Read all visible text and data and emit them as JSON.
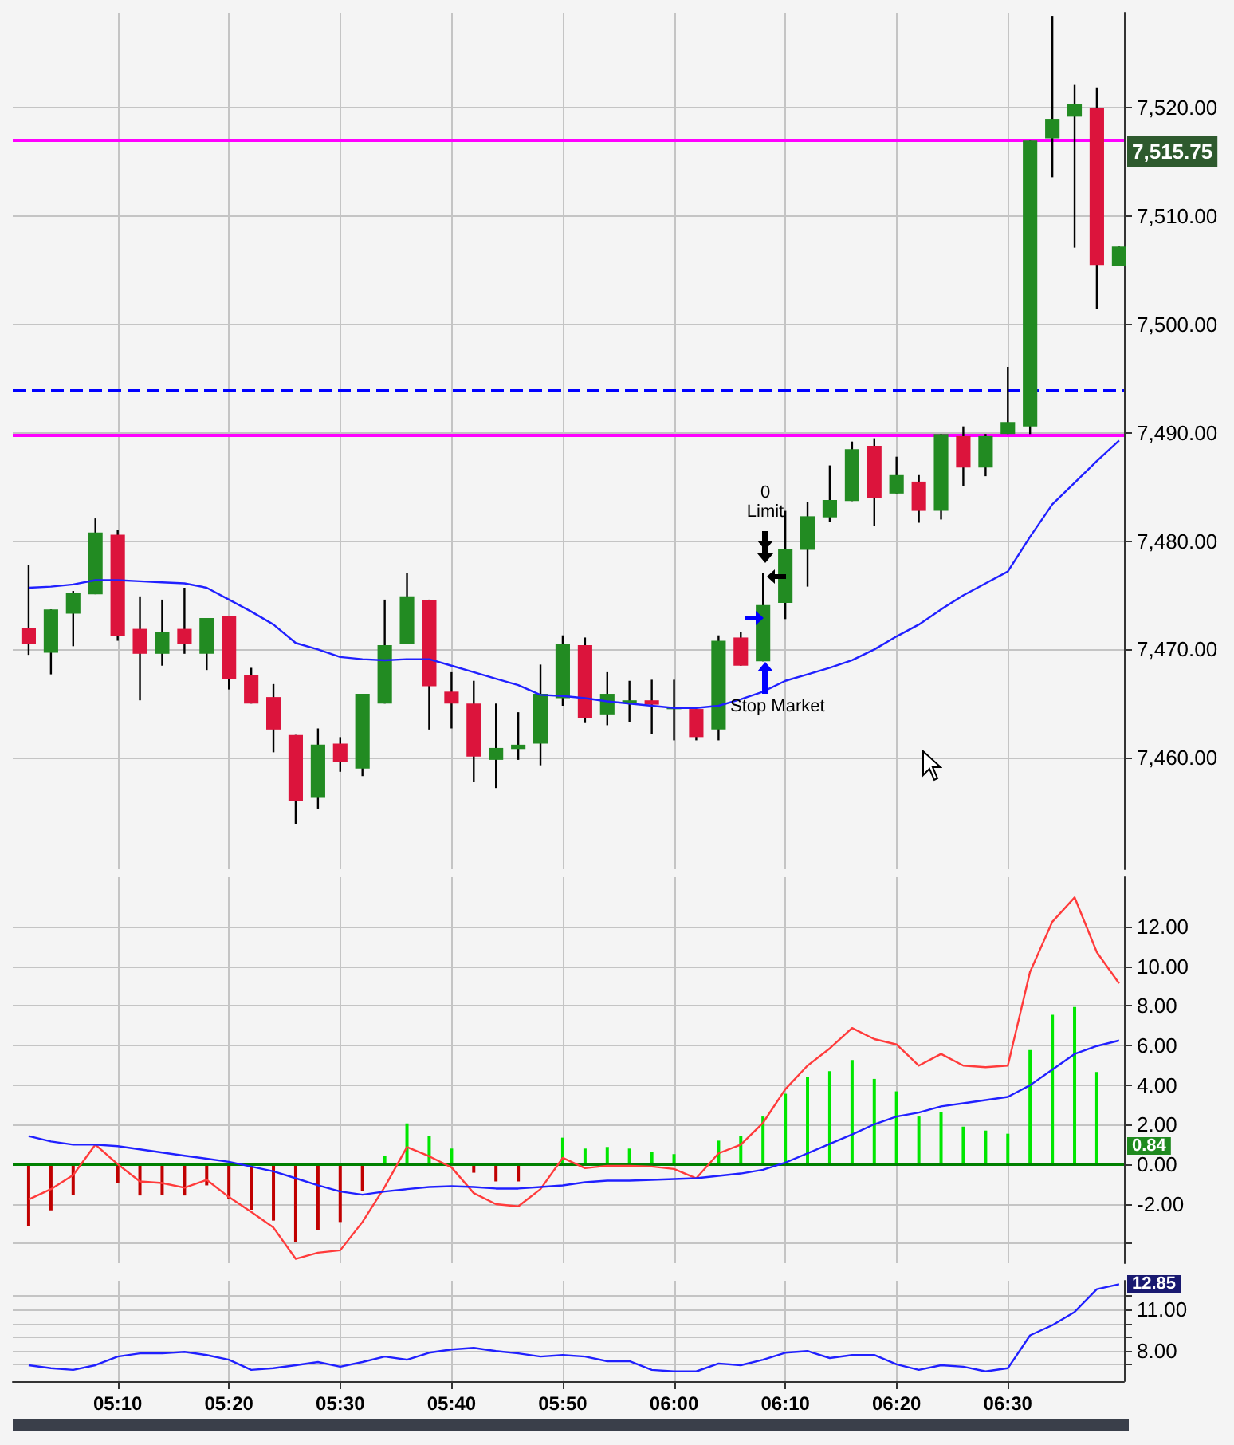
{
  "chart_data": [
    {
      "type": "candlestick",
      "x": [
        5.0333,
        5.0667,
        5.1,
        5.1333,
        5.1667,
        5.2,
        5.2333,
        5.2667,
        5.3,
        5.3333,
        5.3667,
        5.4,
        5.4333,
        5.4667,
        5.5,
        5.5333,
        5.5667,
        5.6,
        5.6333,
        5.6667,
        5.7,
        5.7333,
        5.7667,
        5.8,
        5.8333,
        5.8667,
        5.9,
        5.9333,
        5.9667,
        6,
        6.0333,
        6.0667,
        6.1,
        6.1333,
        6.1667,
        6.2,
        6.2333,
        6.2667,
        6.3,
        6.3333,
        6.3667,
        6.4,
        6.4333,
        6.4667,
        6.5,
        6.5333,
        6.5667,
        6.6,
        6.6333,
        6.6667
      ],
      "ohlc": [
        [
          7472.0,
          7477.8,
          7469.5,
          7470.5
        ],
        [
          7469.7,
          7473.7,
          7467.7,
          7473.7
        ],
        [
          7473.3,
          7475.4,
          7470.3,
          7475.2
        ],
        [
          7475.1,
          7482.1,
          7475.1,
          7480.8
        ],
        [
          7480.6,
          7481.0,
          7470.8,
          7471.2
        ],
        [
          7471.9,
          7474.9,
          7465.3,
          7469.6
        ],
        [
          7469.6,
          7474.6,
          7468.5,
          7471.6
        ],
        [
          7471.9,
          7475.7,
          7469.6,
          7470.5
        ],
        [
          7469.6,
          7472.9,
          7468.1,
          7472.9
        ],
        [
          7473.1,
          7473.1,
          7466.3,
          7467.3
        ],
        [
          7467.6,
          7468.3,
          7465.0,
          7465.0
        ],
        [
          7465.6,
          7466.8,
          7460.5,
          7462.6
        ],
        [
          7462.1,
          7462.1,
          7453.9,
          7456.0
        ],
        [
          7456.3,
          7462.7,
          7455.3,
          7461.2
        ],
        [
          7461.3,
          7461.9,
          7458.7,
          7459.6
        ],
        [
          7459.0,
          7465.9,
          7458.3,
          7465.9
        ],
        [
          7465.0,
          7474.6,
          7465.0,
          7470.4
        ],
        [
          7470.5,
          7477.1,
          7470.5,
          7474.9
        ],
        [
          7474.6,
          7474.6,
          7462.6,
          7466.6
        ],
        [
          7466.1,
          7467.9,
          7462.7,
          7465.0
        ],
        [
          7465.0,
          7467.1,
          7457.8,
          7460.1
        ],
        [
          7459.8,
          7465.0,
          7457.2,
          7460.9
        ],
        [
          7460.8,
          7464.2,
          7459.8,
          7461.2
        ],
        [
          7461.3,
          7468.6,
          7459.3,
          7465.9
        ],
        [
          7465.5,
          7471.3,
          7464.8,
          7470.5
        ],
        [
          7470.4,
          7471.1,
          7463.2,
          7463.7
        ],
        [
          7464.0,
          7467.9,
          7463.0,
          7465.9
        ],
        [
          7465.1,
          7467.1,
          7463.3,
          7465.3
        ],
        [
          7465.3,
          7467.2,
          7462.2,
          7464.9
        ],
        [
          7464.7,
          7467.2,
          7461.6,
          7464.7
        ],
        [
          7464.5,
          7464.5,
          7461.6,
          7461.9
        ],
        [
          7462.6,
          7471.3,
          7461.6,
          7470.8
        ],
        [
          7471.1,
          7471.6,
          7468.5,
          7468.5
        ],
        [
          7468.9,
          7477.1,
          7468.9,
          7474.1
        ],
        [
          7474.3,
          7482.8,
          7472.8,
          7479.3
        ],
        [
          7479.2,
          7483.6,
          7475.8,
          7482.3
        ],
        [
          7482.2,
          7487.0,
          7481.8,
          7483.8
        ],
        [
          7483.7,
          7489.2,
          7483.7,
          7488.5
        ],
        [
          7488.8,
          7489.5,
          7481.4,
          7484.0
        ],
        [
          7484.4,
          7487.8,
          7484.4,
          7486.1
        ],
        [
          7485.5,
          7486.1,
          7481.7,
          7482.8
        ],
        [
          7482.8,
          7489.9,
          7482.0,
          7489.9
        ],
        [
          7489.7,
          7490.6,
          7485.1,
          7486.8
        ],
        [
          7486.8,
          7489.9,
          7486.0,
          7489.7
        ],
        [
          7489.9,
          7496.1,
          7489.9,
          7491.0
        ],
        [
          7490.6,
          7517.0,
          7489.9,
          7517.0
        ],
        [
          7517.2,
          7528.5,
          7513.6,
          7519.0
        ],
        [
          7519.2,
          7522.2,
          7507.1,
          7520.4
        ],
        [
          7520.0,
          7521.9,
          7501.4,
          7505.5
        ],
        [
          7505.4,
          7507.2,
          7505.4,
          7507.2
        ]
      ],
      "colors": [
        "#dc143c",
        "#228b22",
        "#228b22",
        "#228b22",
        "#dc143c",
        "#dc143c",
        "#228b22",
        "#dc143c",
        "#228b22",
        "#dc143c",
        "#dc143c",
        "#dc143c",
        "#dc143c",
        "#228b22",
        "#dc143c",
        "#228b22",
        "#228b22",
        "#228b22",
        "#dc143c",
        "#dc143c",
        "#dc143c",
        "#228b22",
        "#228b22",
        "#228b22",
        "#228b22",
        "#dc143c",
        "#228b22",
        "#228b22",
        "#dc143c",
        "#228b22",
        "#dc143c",
        "#228b22",
        "#dc143c",
        "#228b22",
        "#228b22",
        "#228b22",
        "#228b22",
        "#228b22",
        "#dc143c",
        "#228b22",
        "#dc143c",
        "#228b22",
        "#dc143c",
        "#228b22",
        "#228b22",
        "#228b22",
        "#228b22",
        "#228b22",
        "#dc143c",
        "#228b22"
      ],
      "series": [
        {
          "type": "line",
          "color": "#2020ff",
          "values": [
            7475.7,
            7475.8,
            7476.0,
            7476.4,
            7476.4,
            7476.3,
            7476.2,
            7476.1,
            7475.7,
            7474.6,
            7473.5,
            7472.3,
            7470.6,
            7470.0,
            7469.3,
            7469.1,
            7469.0,
            7469.1,
            7469.1,
            7468.5,
            7467.9,
            7467.3,
            7466.7,
            7465.8,
            7465.7,
            7465.5,
            7465.2,
            7465.0,
            7464.8,
            7464.6,
            7464.6,
            7464.8,
            7465.4,
            7466.1,
            7467.1,
            7467.7,
            7468.3,
            7469.0,
            7470.0,
            7471.2,
            7472.3,
            7473.7,
            7475.0,
            7476.1,
            7477.2,
            7480.4,
            7483.4,
            7485.4,
            7487.4,
            7489.3
          ]
        }
      ],
      "ref_lines": [
        {
          "axis": "y",
          "value": 7517.0,
          "color": "#ff00ff",
          "line_style": "solid"
        },
        {
          "axis": "y",
          "value": 7494.0,
          "color": "#0000ff",
          "line_style": "dashed"
        },
        {
          "axis": "y",
          "value": 7489.8,
          "color": "#ff00ff",
          "line_style": "solid"
        }
      ],
      "annotations": [
        "0",
        "Limit",
        "Stop Market",
        "7,515.75"
      ],
      "xlim": [
        5.0095,
        6.674
      ],
      "ylim": [
        7449.7,
        7528.8
      ],
      "xticks": [
        {
          "value": 5.1667,
          "label": null
        },
        {
          "value": 5.3333,
          "label": null
        },
        {
          "value": 5.5,
          "label": null
        },
        {
          "value": 5.6667,
          "label": null
        },
        {
          "value": 5.8333,
          "label": null
        },
        {
          "value": 6,
          "label": null
        },
        {
          "value": 6.1667,
          "label": null
        },
        {
          "value": 6.3333,
          "label": null
        },
        {
          "value": 6.5,
          "label": null
        }
      ],
      "yticks": [
        {
          "value": 7460,
          "label": "7,460.00"
        },
        {
          "value": 7470,
          "label": "7,470.00"
        },
        {
          "value": 7480,
          "label": "7,480.00"
        },
        {
          "value": 7490,
          "label": "7,490.00"
        },
        {
          "value": 7500,
          "label": "7,500.00"
        },
        {
          "value": 7510,
          "label": "7,510.00"
        },
        {
          "value": 7520,
          "label": "7,520.00"
        }
      ],
      "grid": true,
      "marker": "none",
      "tick_labels": "y"
    },
    {
      "type": "bar",
      "x": [
        5.0333,
        5.0667,
        5.1,
        5.1333,
        5.1667,
        5.2,
        5.2333,
        5.2667,
        5.3,
        5.3333,
        5.3667,
        5.4,
        5.4333,
        5.4667,
        5.5,
        5.5333,
        5.5667,
        5.6,
        5.6333,
        5.6667,
        5.7,
        5.7333,
        5.7667,
        5.8,
        5.8333,
        5.8667,
        5.9,
        5.9333,
        5.9667,
        6,
        6.0333,
        6.0667,
        6.1,
        6.1333,
        6.1667,
        6.2,
        6.2333,
        6.2667,
        6.3,
        6.3333,
        6.3667,
        6.4,
        6.4333,
        6.4667,
        6.5,
        6.5333,
        6.5667,
        6.6,
        6.6333,
        6.6667
      ],
      "series": [
        {
          "values": [
            -3.12,
            -2.33,
            -1.54,
            null,
            -0.95,
            -1.58,
            -1.54,
            -1.58,
            -1.07,
            -1.74,
            -2.3,
            -2.85,
            -3.95,
            -3.32,
            -2.92,
            -1.34,
            0.43,
            2.06,
            1.42,
            0.79,
            -0.43,
            -0.87,
            -0.87,
            null,
            1.34,
            0.79,
            0.87,
            0.79,
            0.63,
            0.51,
            0,
            1.19,
            1.42,
            2.41,
            3.56,
            4.39,
            4.7,
            5.26,
            4.31,
            3.68,
            2.41,
            2.65,
            1.9,
            1.7,
            1.54,
            5.77,
            7.55,
            7.94,
            4.66,
            null
          ],
          "colors": [
            "#c00000",
            "#c00000",
            "#c00000",
            "#c00000",
            "#c00000",
            "#c00000",
            "#c00000",
            "#c00000",
            "#c00000",
            "#c00000",
            "#c00000",
            "#c00000",
            "#c00000",
            "#c00000",
            "#c00000",
            "#c00000",
            "#00e600",
            "#00e600",
            "#00e600",
            "#00e600",
            "#c00000",
            "#c00000",
            "#c00000",
            "#c00000",
            "#00e600",
            "#00e600",
            "#00e600",
            "#00e600",
            "#00e600",
            "#00e600",
            "#00e600",
            "#00e600",
            "#00e600",
            "#00e600",
            "#00e600",
            "#00e600",
            "#00e600",
            "#00e600",
            "#00e600",
            "#00e600",
            "#00e600",
            "#00e600",
            "#00e600",
            "#00e600",
            "#00e600",
            "#00e600",
            "#00e600",
            "#00e600",
            "#00e600",
            "#00e600"
          ]
        },
        {
          "type": "line",
          "color": "#ff3b3b",
          "values": [
            -1.78,
            -1.26,
            -0.55,
            0.99,
            0.0,
            -0.87,
            -0.95,
            -1.19,
            -0.79,
            -1.66,
            -2.41,
            -3.2,
            -4.78,
            -4.47,
            -4.35,
            -2.92,
            -1.15,
            0.87,
            0.4,
            -0.16,
            -1.46,
            -2.02,
            -2.13,
            -1.26,
            0.32,
            -0.2,
            -0.08,
            -0.08,
            -0.12,
            -0.24,
            -0.71,
            0.55,
            0.99,
            2.09,
            3.79,
            4.98,
            5.85,
            6.88,
            6.32,
            6.05,
            4.98,
            5.57,
            4.98,
            4.9,
            4.98,
            9.72,
            12.25,
            13.48,
            10.71,
            9.13
          ]
        },
        {
          "type": "line",
          "color": "#2020ff",
          "values": [
            1.42,
            1.15,
            0.99,
            0.99,
            0.91,
            0.75,
            0.59,
            0.43,
            0.28,
            0.12,
            -0.12,
            -0.36,
            -0.71,
            -1.07,
            -1.38,
            -1.54,
            -1.38,
            -1.26,
            -1.15,
            -1.11,
            -1.15,
            -1.23,
            -1.23,
            -1.15,
            -1.07,
            -0.91,
            -0.83,
            -0.83,
            -0.79,
            -0.75,
            -0.71,
            -0.59,
            -0.47,
            -0.28,
            0.08,
            0.55,
            1.03,
            1.5,
            2.02,
            2.41,
            2.61,
            2.92,
            3.08,
            3.24,
            3.4,
            3.99,
            4.78,
            5.57,
            5.97,
            6.25
          ]
        }
      ],
      "ref_lines": [
        {
          "axis": "y",
          "value": 0,
          "color": "#008000",
          "line_style": "solid"
        }
      ],
      "annotations": [
        "0.84"
      ],
      "xlim": [
        5.0095,
        6.674
      ],
      "ylim": [
        -5,
        14.5
      ],
      "xticks": [
        {
          "value": 5.1667,
          "label": null
        },
        {
          "value": 5.3333,
          "label": null
        },
        {
          "value": 5.5,
          "label": null
        },
        {
          "value": 5.6667,
          "label": null
        },
        {
          "value": 5.8333,
          "label": null
        },
        {
          "value": 6,
          "label": null
        },
        {
          "value": 6.1667,
          "label": null
        },
        {
          "value": 6.3333,
          "label": null
        },
        {
          "value": 6.5,
          "label": null
        }
      ],
      "yticks": [
        {
          "value": -4,
          "label": null
        },
        {
          "value": -2,
          "label": "-2.00"
        },
        {
          "value": 0,
          "label": "0.00"
        },
        {
          "value": 2,
          "label": "2.00"
        },
        {
          "value": 4,
          "label": "4.00"
        },
        {
          "value": 6,
          "label": "6.00"
        },
        {
          "value": 8,
          "label": "8.00"
        },
        {
          "value": 10,
          "label": "10.00"
        },
        {
          "value": 12,
          "label": "12.00"
        }
      ],
      "grid": true,
      "marker": "none",
      "tick_labels": "y"
    },
    {
      "type": "line",
      "x": [
        5.0333,
        5.0667,
        5.1,
        5.1333,
        5.1667,
        5.2,
        5.2333,
        5.2667,
        5.3,
        5.3333,
        5.3667,
        5.4,
        5.4333,
        5.4667,
        5.5,
        5.5333,
        5.5667,
        5.6,
        5.6333,
        5.6667,
        5.7,
        5.7333,
        5.7667,
        5.8,
        5.8333,
        5.8667,
        5.9,
        5.9333,
        5.9667,
        6,
        6.0333,
        6.0667,
        6.1,
        6.1333,
        6.1667,
        6.2,
        6.2333,
        6.2667,
        6.3,
        6.3333,
        6.3667,
        6.4,
        6.4333,
        6.4667,
        6.5,
        6.5333,
        6.5667,
        6.6,
        6.6333,
        6.6667
      ],
      "series": [
        {
          "color": "#2020ff",
          "values": [
            6.96,
            6.74,
            6.62,
            6.96,
            7.59,
            7.82,
            7.82,
            7.93,
            7.7,
            7.36,
            6.62,
            6.74,
            6.96,
            7.19,
            6.85,
            7.19,
            7.59,
            7.36,
            7.87,
            8.1,
            8.22,
            7.99,
            7.82,
            7.59,
            7.7,
            7.59,
            7.25,
            7.25,
            6.62,
            6.51,
            6.51,
            7.08,
            6.96,
            7.36,
            7.87,
            7.99,
            7.48,
            7.7,
            7.7,
            7.02,
            6.62,
            6.96,
            6.85,
            6.51,
            6.74,
            9.13,
            9.87,
            10.83,
            12.48,
            12.85
          ]
        }
      ],
      "annotations": [
        "12.85"
      ],
      "xlim": [
        5.0095,
        6.674
      ],
      "ylim": [
        5.8,
        13.1
      ],
      "xticks": [
        {
          "value": 5.1667,
          "label": "05:10"
        },
        {
          "value": 5.3333,
          "label": "05:20"
        },
        {
          "value": 5.5,
          "label": "05:30"
        },
        {
          "value": 5.6667,
          "label": "05:40"
        },
        {
          "value": 5.8333,
          "label": "05:50"
        },
        {
          "value": 6,
          "label": "06:00"
        },
        {
          "value": 6.1667,
          "label": "06:10"
        },
        {
          "value": 6.3333,
          "label": "06:20"
        },
        {
          "value": 6.5,
          "label": "06:30"
        }
      ],
      "yticks": [
        {
          "value": 7,
          "label": null
        },
        {
          "value": 8,
          "label": "8.00"
        },
        {
          "value": 9,
          "label": null
        },
        {
          "value": 10,
          "label": null
        },
        {
          "value": 11,
          "label": "11.00"
        },
        {
          "value": 12,
          "label": null
        }
      ],
      "grid": true,
      "marker": "none"
    }
  ]
}
